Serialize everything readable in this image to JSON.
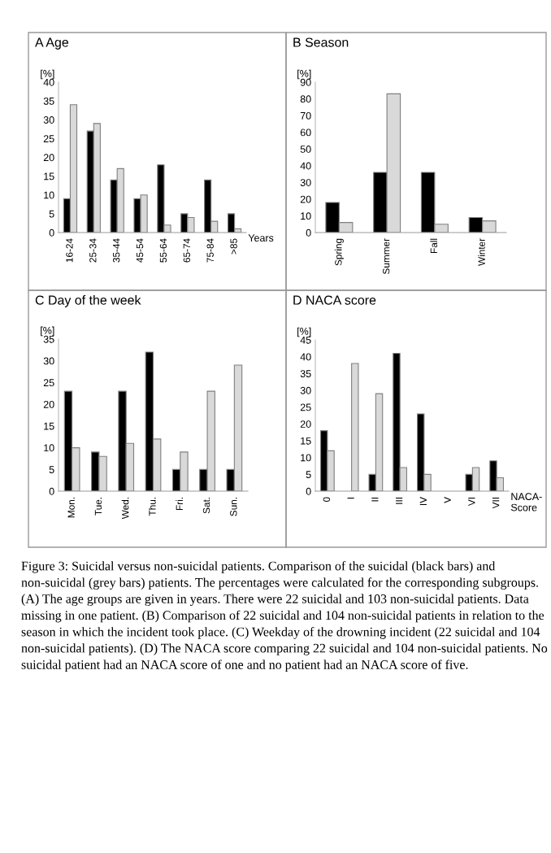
{
  "chart_data": [
    {
      "type": "bar",
      "title": "A Age",
      "ylabel": "[%]",
      "xlabel": "Years",
      "categories": [
        "16-24",
        "25-34",
        "35-44",
        "45-54",
        "55-64",
        "65-74",
        "75-84",
        ">85"
      ],
      "ylim": [
        0,
        40
      ],
      "yticks": [
        0,
        5,
        10,
        15,
        20,
        25,
        30,
        35,
        40
      ],
      "grid": false,
      "legend": false,
      "series": [
        {
          "color": "#000000",
          "values": [
            9,
            27,
            14,
            9,
            18,
            5,
            14,
            5
          ]
        },
        {
          "color": "#d9d9d9",
          "values": [
            34,
            29,
            17,
            10,
            2,
            4,
            3,
            1
          ]
        }
      ]
    },
    {
      "type": "bar",
      "title": "B Season",
      "ylabel": "[%]",
      "categories": [
        "Spring",
        "Summer",
        "Fall",
        "Winter"
      ],
      "ylim": [
        0,
        90
      ],
      "yticks": [
        0,
        10,
        20,
        30,
        40,
        50,
        60,
        70,
        80,
        90
      ],
      "grid": false,
      "legend": false,
      "series": [
        {
          "color": "#000000",
          "values": [
            18,
            36,
            36,
            9
          ]
        },
        {
          "color": "#d9d9d9",
          "values": [
            6,
            83,
            5,
            7
          ]
        }
      ]
    },
    {
      "type": "bar",
      "title": "C Day of the week",
      "ylabel": "[%]",
      "categories": [
        "Mon.",
        "Tue.",
        "Wed.",
        "Thu.",
        "Fri.",
        "Sat.",
        "Sun."
      ],
      "ylim": [
        0,
        35
      ],
      "yticks": [
        0,
        5,
        10,
        15,
        20,
        25,
        30,
        35
      ],
      "grid": false,
      "legend": false,
      "series": [
        {
          "color": "#000000",
          "values": [
            23,
            9,
            23,
            32,
            5,
            5,
            5
          ]
        },
        {
          "color": "#d9d9d9",
          "values": [
            10,
            8,
            11,
            12,
            9,
            23,
            29
          ]
        }
      ]
    },
    {
      "type": "bar",
      "title": "D NACA score",
      "ylabel": "[%]",
      "xlabel": "NACA-\nScore",
      "categories": [
        "0",
        "I",
        "II",
        "III",
        "IV",
        "V",
        "VI",
        "VII"
      ],
      "ylim": [
        0,
        45
      ],
      "yticks": [
        0,
        5,
        10,
        15,
        20,
        25,
        30,
        35,
        40,
        45
      ],
      "grid": false,
      "legend": false,
      "series": [
        {
          "color": "#000000",
          "values": [
            18,
            null,
            5,
            41,
            23,
            null,
            5,
            9
          ]
        },
        {
          "color": "#d9d9d9",
          "values": [
            12,
            38,
            29,
            7,
            5,
            null,
            7,
            4
          ]
        }
      ],
      "annotations": [
        "Figure 3: Suicidal versus non-suicidal patients. Comparison of the suicidal (black bars) and non-suicidal (grey bars) patients. The percentages were calculated for the corresponding subgroups. (A) The age groups are given in years. There were 22 suicidal and 103 non-suicidal patients. Data missing in one patient. (B) Comparison of 22 suicidal and 104 non-suicidal patients in relation to the season in which the incident took place. (C) Weekday of the drowning incident (22 suicidal and 104 non-suicidal patients). (D) The NACA score comparing 22 suicidal and 104 non-suicidal patients. No suicidal patient had an NACA score of one and no patient had an NACA score of five."
      ]
    }
  ]
}
